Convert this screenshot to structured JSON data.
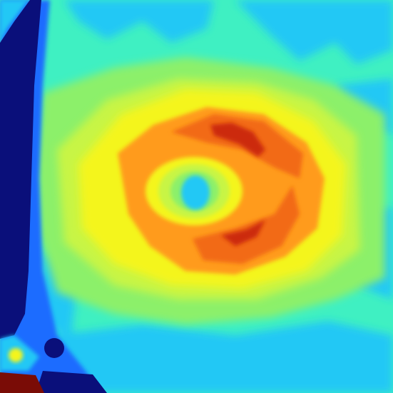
{
  "image": {
    "kind": "false-color intensity map",
    "colormap": "jet",
    "colors": {
      "deep_blue": "#0a0f7a",
      "blue": "#1e6cff",
      "cyan": "#22c8f5",
      "aqua_green": "#3ff0c2",
      "green": "#8cf06a",
      "yellow_green": "#c8f545",
      "yellow": "#f4f51e",
      "orange": "#ff9b1a",
      "dark_orange": "#f26a12",
      "red": "#cc2a08",
      "dark_red": "#7a0c06"
    }
  }
}
